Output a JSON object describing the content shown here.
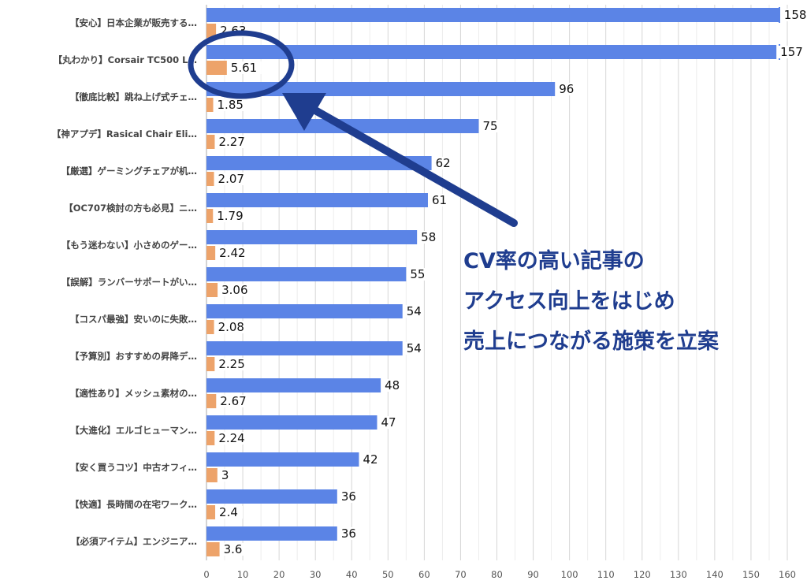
{
  "chart_data": {
    "type": "bar",
    "orientation": "horizontal",
    "categories": [
      "【安心】日本企業が販売する…",
      "【丸わかり】Corsair TC500 L…",
      "【徹底比較】跳ね上げ式チェ…",
      "【神アプデ】Rasical Chair Eli…",
      "【厳選】ゲーミングチェアが机…",
      "【OC707検討の方も必見】ニ…",
      "【もう迷わない】小さめのゲー…",
      "【誤解】ランバーサポートがい…",
      "【コスパ最強】安いのに失敗…",
      "【予算別】おすすめの昇降デ…",
      "【適性あり】メッシュ素材の…",
      "【大進化】エルゴヒューマン…",
      "【安く買うコツ】中古オフィ…",
      "【快適】長時間の在宅ワーク…",
      "【必須アイテム】エンジニア…"
    ],
    "series": [
      {
        "values": [
          158,
          157,
          96,
          75,
          62,
          61,
          58,
          55,
          54,
          54,
          48,
          47,
          42,
          36,
          36
        ],
        "color": "#5b84e6"
      },
      {
        "values": [
          2.63,
          5.61,
          1.85,
          2.27,
          2.07,
          1.79,
          2.42,
          3.06,
          2.08,
          2.25,
          2.67,
          2.24,
          3,
          2.4,
          3.6
        ],
        "color": "#eda36a"
      }
    ],
    "value_labels": [
      [
        "158",
        "157",
        "96",
        "75",
        "62",
        "61",
        "58",
        "55",
        "54",
        "54",
        "48",
        "47",
        "42",
        "36",
        "36"
      ],
      [
        "2.63",
        "5.61",
        "1.85",
        "2.27",
        "2.07",
        "1.79",
        "2.42",
        "3.06",
        "2.08",
        "2.25",
        "2.67",
        "2.24",
        "3",
        "2.4",
        "3.6"
      ]
    ],
    "xlim": [
      0,
      160
    ],
    "xticks": [
      "0",
      "10",
      "20",
      "30",
      "40",
      "50",
      "60",
      "70",
      "80",
      "90",
      "100",
      "110",
      "120",
      "130",
      "140",
      "150",
      "160"
    ],
    "grid": true,
    "title": "",
    "xlabel": "",
    "ylabel": ""
  },
  "annotation": {
    "lines": [
      "CV率の高い記事の",
      "アクセス向上をはじめ",
      "売上につながる施策を立案"
    ],
    "highlight_target": "5.61",
    "color": "#1f3d8f"
  }
}
